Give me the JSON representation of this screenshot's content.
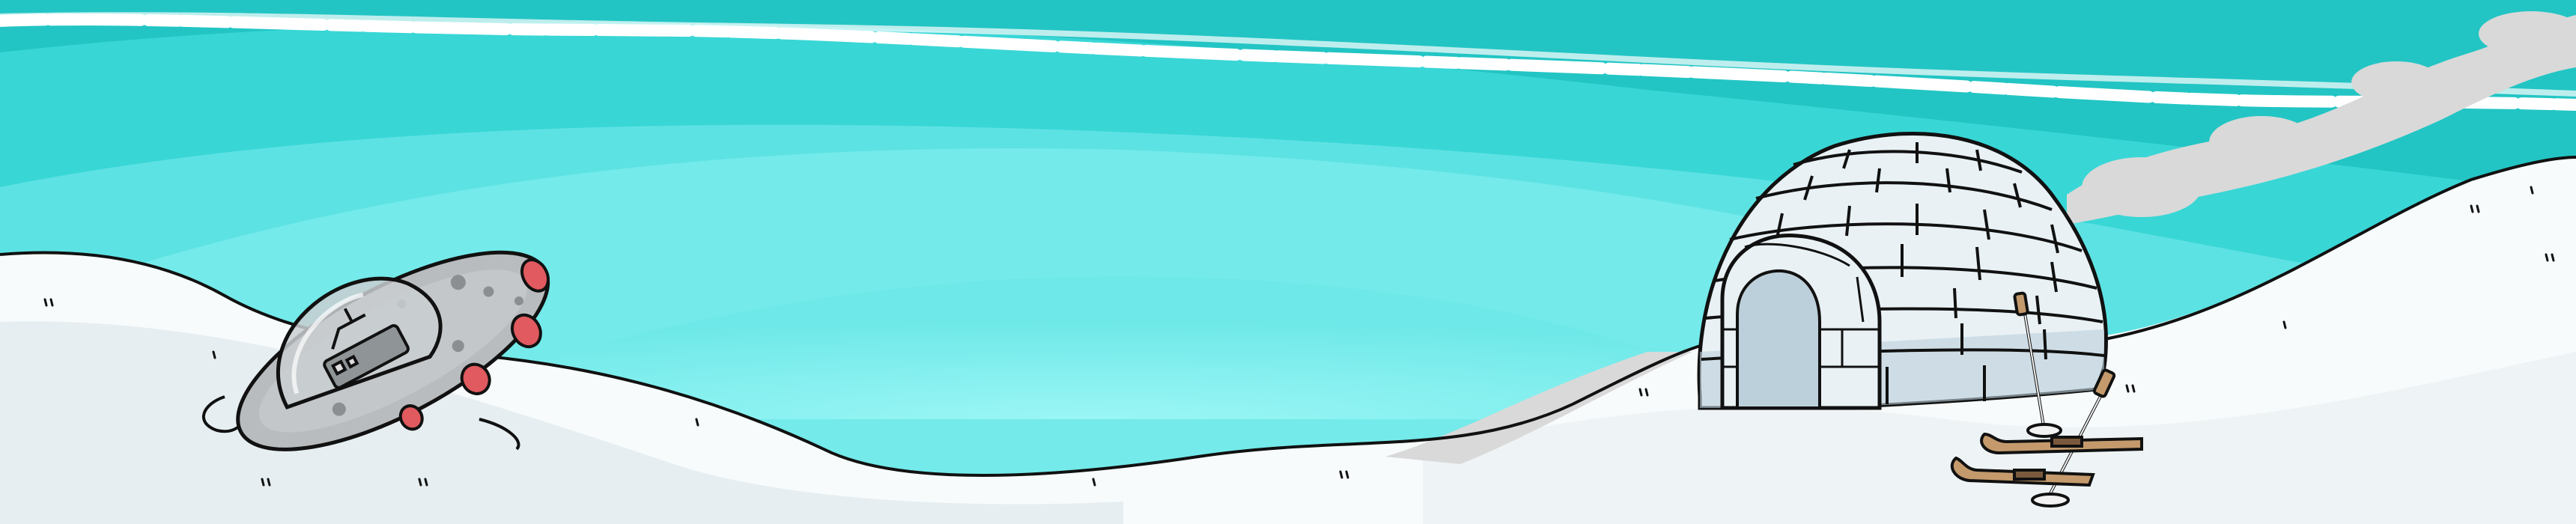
{
  "scene": {
    "name": "arctic-ufo-crash-scene",
    "colors": {
      "sky_top": "#22c5c4",
      "sky_band": "#39d6d6",
      "sky_glow_outer": "#5de2e3",
      "sky_glow_mid": "#74eaea",
      "sky_glow_inner": "#8ff3f2",
      "cloud_stripe": "#ffffff",
      "smoke": "#d9d9d9",
      "snow_light": "#f7fbfc",
      "snow_shadow": "#e6eef1",
      "outline": "#111111",
      "ufo_body": "#b9bcbe",
      "ufo_dome": "#c9ced1",
      "ufo_lights": "#e05a5f",
      "ice_block": "#e9f1f5",
      "ice_shadow": "#bcd0db",
      "ski_wood": "#c49a6c",
      "pole": "#f2f2f2"
    },
    "objects": [
      {
        "id": "ufo",
        "icon": "crashed-ufo"
      },
      {
        "id": "igloo",
        "icon": "igloo"
      },
      {
        "id": "skis",
        "icon": "skis"
      },
      {
        "id": "poles",
        "icon": "ski-poles"
      },
      {
        "id": "smoke",
        "icon": "smoke-trail"
      }
    ]
  }
}
